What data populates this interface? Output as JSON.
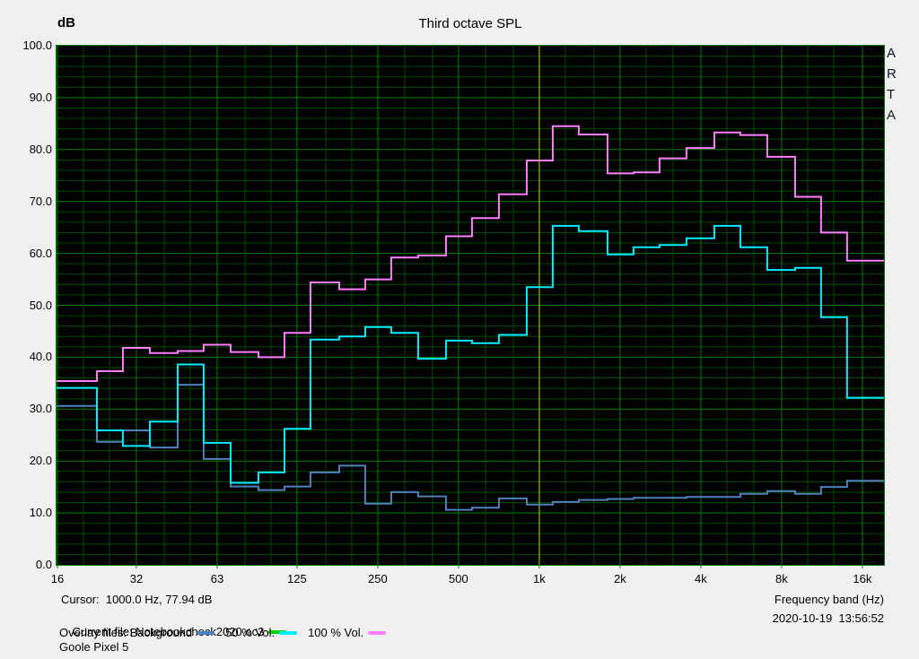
{
  "brand": "ARTA",
  "chart": {
    "title": "Third octave SPL",
    "y_unit": "dB"
  },
  "footer": {
    "cursor": "Cursor:  1000.0 Hz, 77.94 dB",
    "x_axis_title": "Frequency band (Hz)",
    "current_file_label": "Current file: Notebookcheck2020.oc3",
    "current_file_color": "#00d200",
    "overlay_prefix": "Overlay files: ",
    "timestamp": "2020-10-19  13:56:52",
    "device": "Goole Pixel 5"
  },
  "chart_data": {
    "type": "step-line",
    "title": "Third octave SPL",
    "xlabel": "Frequency band (Hz)",
    "ylabel": "dB",
    "ylim": [
      0,
      100
    ],
    "y_major_step": 10,
    "y_minor_step": 2,
    "y_tick_labels": [
      "100.0",
      "90.0",
      "80.0",
      "70.0",
      "60.0",
      "50.0",
      "40.0",
      "30.0",
      "20.0",
      "10.0",
      "0.0"
    ],
    "x_scale": "log-third-octave",
    "x_ticks": [
      {
        "label": "16",
        "f": 16
      },
      {
        "label": "32",
        "f": 31.5
      },
      {
        "label": "63",
        "f": 63
      },
      {
        "label": "125",
        "f": 125
      },
      {
        "label": "250",
        "f": 250
      },
      {
        "label": "500",
        "f": 500
      },
      {
        "label": "1k",
        "f": 1000
      },
      {
        "label": "2k",
        "f": 2000
      },
      {
        "label": "4k",
        "f": 4000
      },
      {
        "label": "8k",
        "f": 8000
      },
      {
        "label": "16k",
        "f": 16000
      }
    ],
    "bands": [
      16,
      20,
      25,
      31.5,
      40,
      50,
      63,
      80,
      100,
      125,
      160,
      200,
      250,
      315,
      400,
      500,
      630,
      800,
      1000,
      1250,
      1600,
      2000,
      2500,
      3150,
      4000,
      5000,
      6300,
      8000,
      10000,
      12500,
      16000
    ],
    "series": [
      {
        "name": "Background",
        "color": "#4f81bd",
        "values": [
          30.6,
          30.6,
          23.7,
          25.9,
          22.6,
          34.7,
          20.4,
          15.1,
          14.4,
          15.1,
          17.8,
          19.1,
          11.8,
          14.0,
          13.2,
          10.6,
          11.0,
          12.8,
          11.6,
          12.1,
          12.5,
          12.7,
          12.9,
          12.9,
          13.1,
          13.1,
          13.7,
          14.2,
          13.7,
          15.0,
          16.2
        ]
      },
      {
        "name": "50 % Vol.",
        "color": "#00eeff",
        "values": [
          34.1,
          34.1,
          25.9,
          22.9,
          27.6,
          38.6,
          23.5,
          15.8,
          17.8,
          26.2,
          43.4,
          44.0,
          45.8,
          44.7,
          39.7,
          43.2,
          42.7,
          44.3,
          53.5,
          65.3,
          64.3,
          59.8,
          61.2,
          61.6,
          62.9,
          65.3,
          61.2,
          56.8,
          57.2,
          47.7,
          32.2
        ]
      },
      {
        "name": "100 % Vol.",
        "color": "#ff7dff",
        "values": [
          35.4,
          35.4,
          37.3,
          41.8,
          40.8,
          41.2,
          42.4,
          41.0,
          40.0,
          44.7,
          54.4,
          53.1,
          55.0,
          59.2,
          59.6,
          63.3,
          66.8,
          71.4,
          77.9,
          84.5,
          82.9,
          75.4,
          75.6,
          78.3,
          80.3,
          83.3,
          82.8,
          78.6,
          70.9,
          64.0,
          58.6
        ]
      }
    ],
    "cursor": {
      "f": 1000,
      "db": 77.94,
      "color": "#c9c900"
    },
    "plot_style": {
      "bg": "#000000",
      "grid_minor": "#004c00",
      "grid_major": "#008200",
      "border": "#008200"
    },
    "legend_position": "bottom-left"
  }
}
